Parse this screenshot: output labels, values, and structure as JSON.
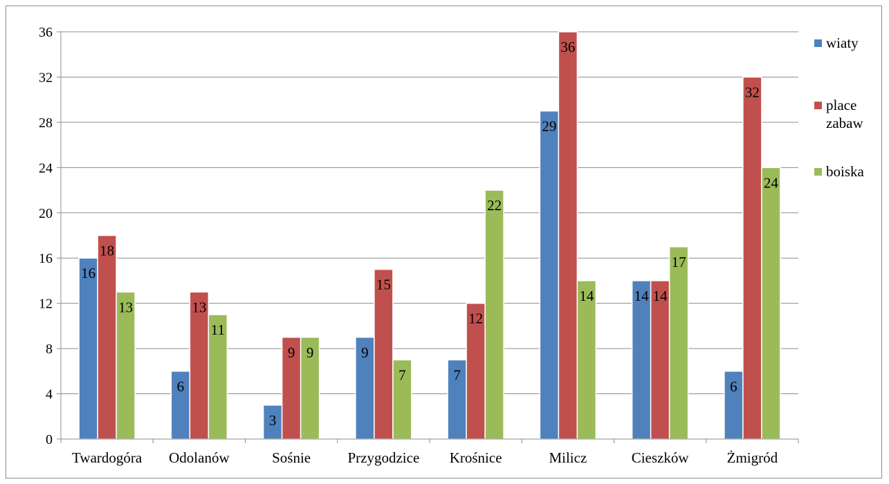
{
  "chart_data": {
    "type": "bar",
    "title": "",
    "xlabel": "",
    "ylabel": "",
    "categories": [
      "Twardogóra",
      "Odolanów",
      "Sośnie",
      "Przygodzice",
      "Krośnice",
      "Milicz",
      "Cieszków",
      "Żmigród"
    ],
    "series": [
      {
        "name": "wiaty",
        "color": "#4f81bd",
        "values": [
          16,
          6,
          3,
          9,
          7,
          29,
          14,
          6
        ]
      },
      {
        "name": "place zabaw",
        "color": "#c0504d",
        "values": [
          18,
          13,
          9,
          15,
          12,
          36,
          14,
          32
        ]
      },
      {
        "name": "boiska",
        "color": "#9bbb59",
        "values": [
          13,
          11,
          9,
          7,
          22,
          14,
          17,
          24
        ]
      }
    ],
    "ylim": [
      0,
      36
    ],
    "yticks": [
      0,
      4,
      8,
      12,
      16,
      20,
      24,
      28,
      32,
      36
    ],
    "grid": true,
    "legend_position": "right",
    "data_labels": true
  }
}
